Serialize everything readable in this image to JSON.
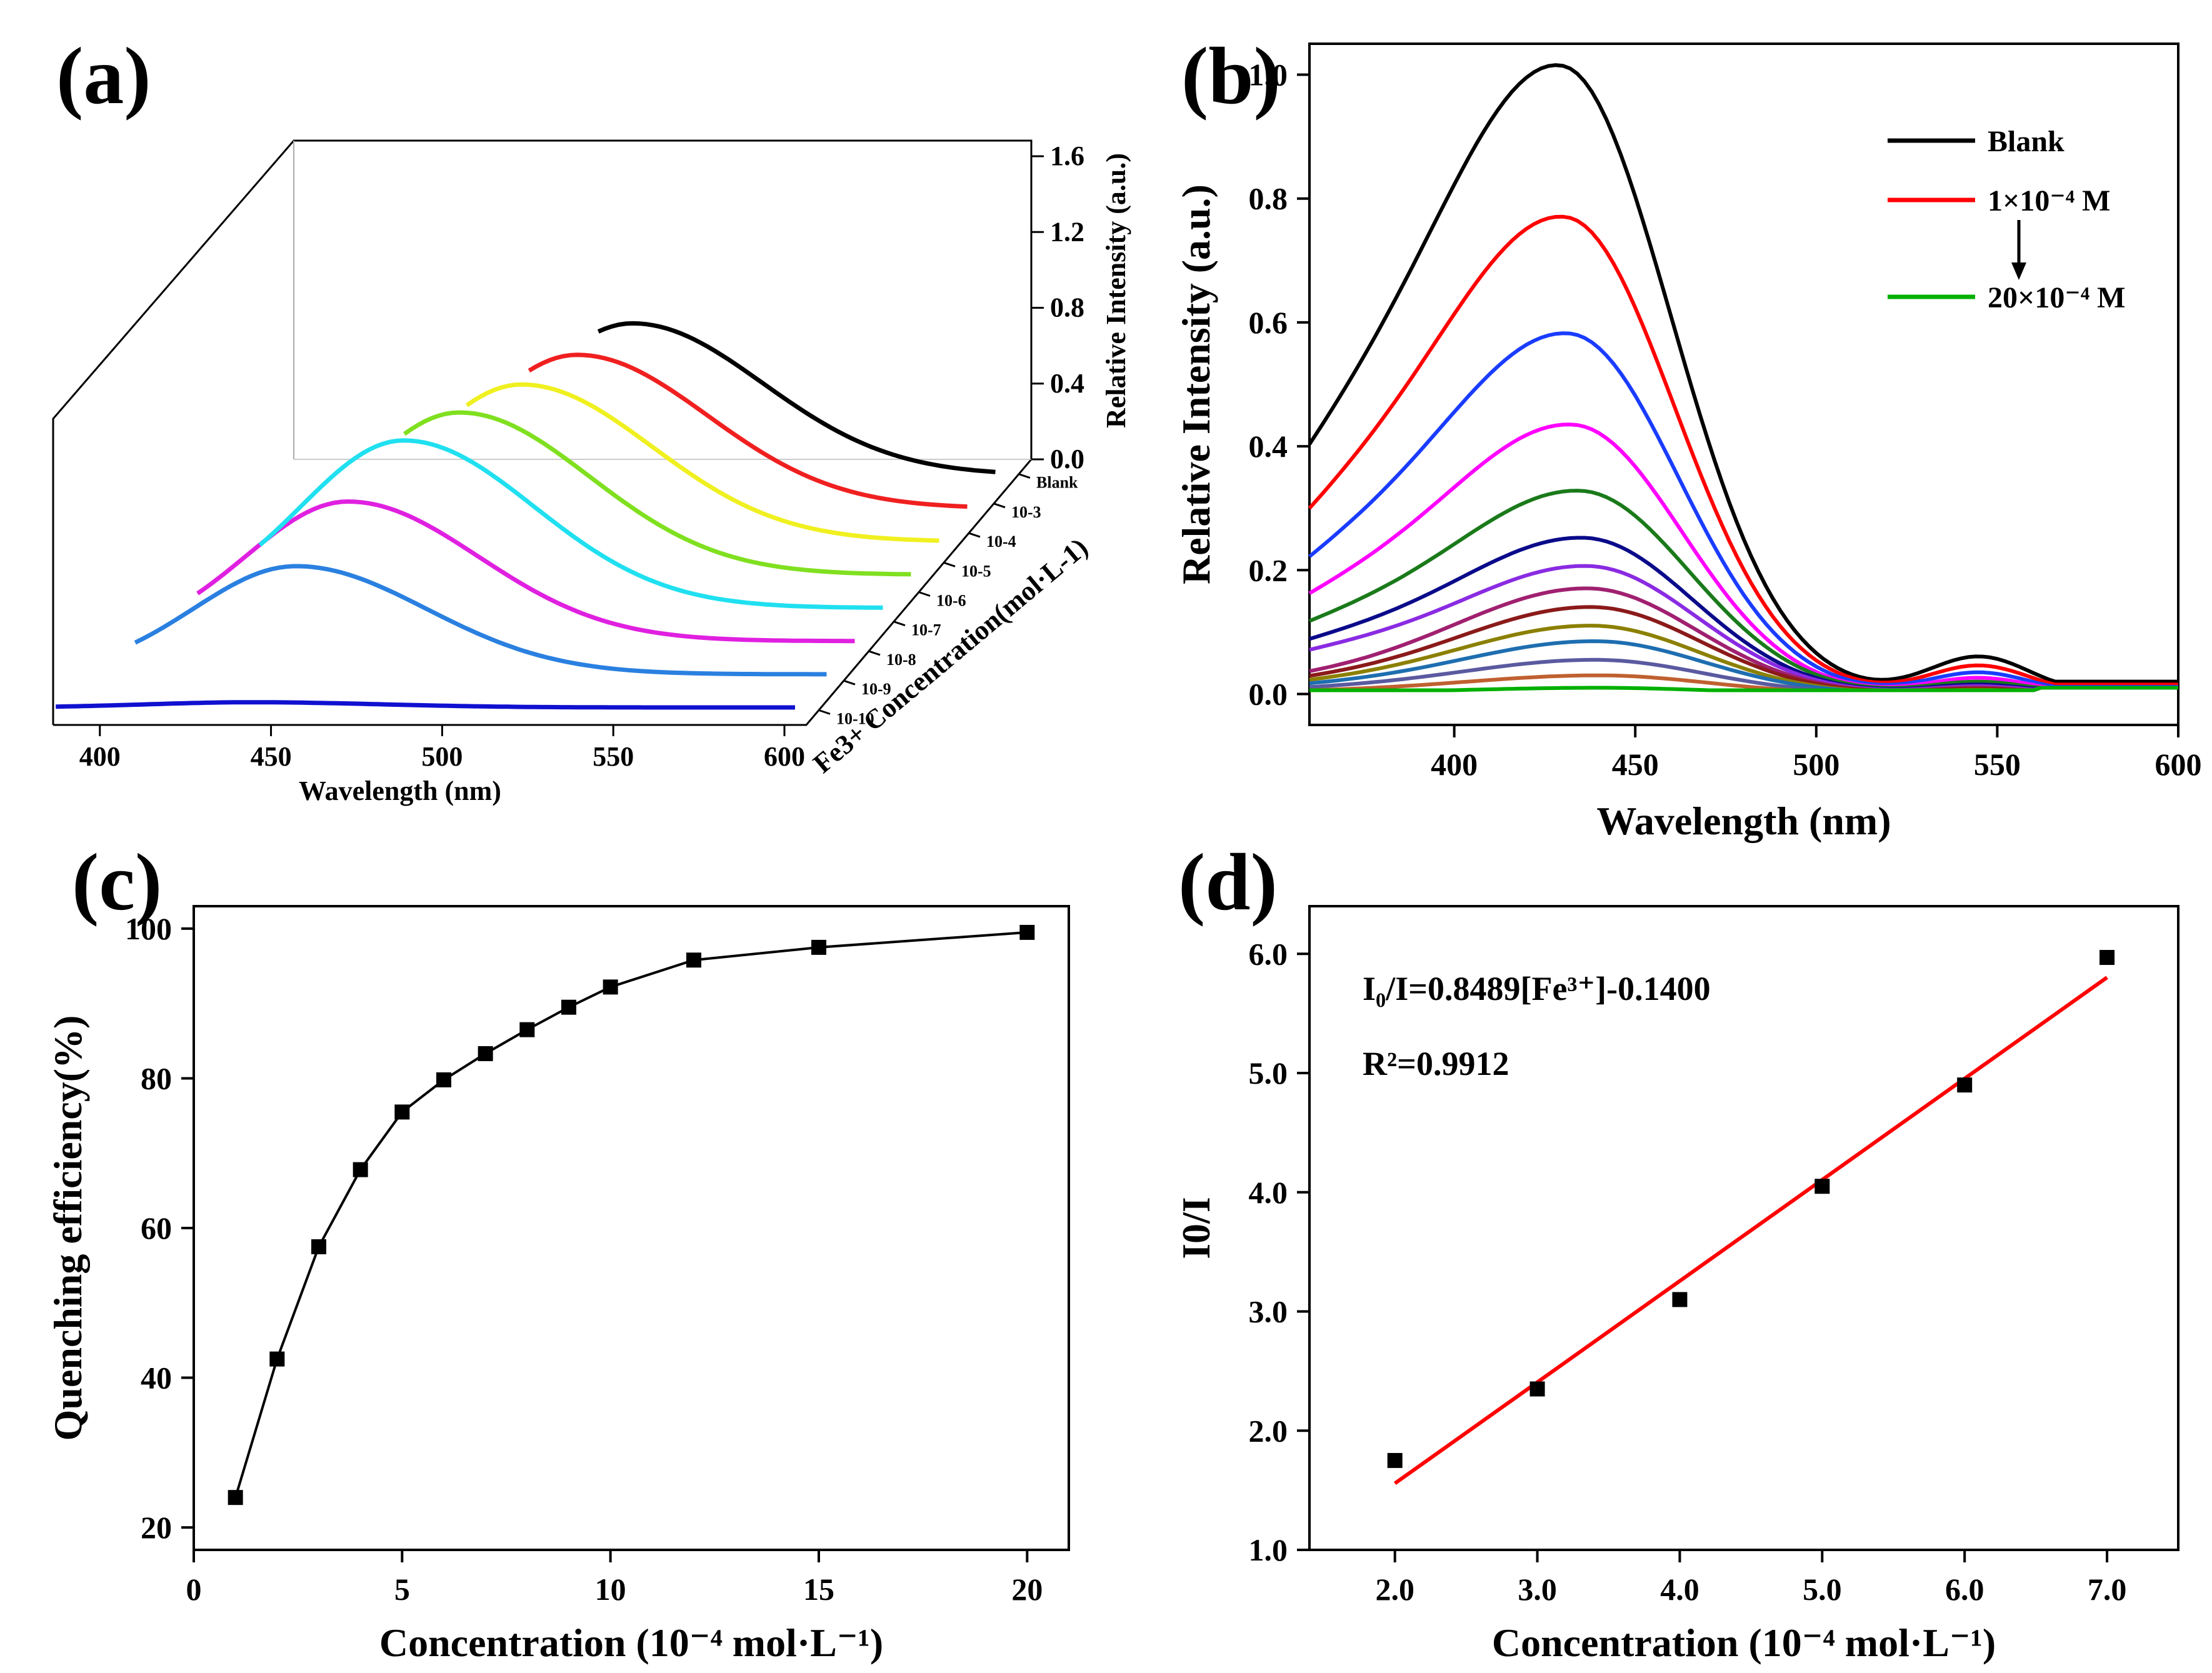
{
  "chart_data": [
    {
      "panel": "(a)",
      "type": "line",
      "view": "3d-waterfall",
      "xlabel": "Wavelength (nm)",
      "zlabel": "Relative Intensity (a.u.)",
      "depth_label": "Fe3+ Concentration(mol·L-1)",
      "x_ticks": [
        "400",
        "450",
        "500",
        "550",
        "600"
      ],
      "z_ticks": [
        "0.0",
        "0.4",
        "0.8",
        "1.2",
        "1.6"
      ],
      "depth_ticks": [
        "10-10",
        "10-9",
        "10-8",
        "10-7",
        "10-6",
        "10-5",
        "10-4",
        "10-3",
        "Blank"
      ],
      "xlim": [
        390,
        600
      ],
      "zlim": [
        0,
        1.6
      ],
      "series": [
        {
          "name": "10-10",
          "color": "#1010d0",
          "peak_x": 440,
          "peak": 0.03,
          "start_x": 383
        },
        {
          "name": "10-9",
          "color": "#2a80e0",
          "peak_x": 445,
          "peak": 0.62,
          "start_x": 398
        },
        {
          "name": "10-8",
          "color": "#e020e0",
          "peak_x": 452,
          "peak": 0.8,
          "start_x": 408
        },
        {
          "name": "10-7",
          "color": "#20e0f0",
          "peak_x": 460,
          "peak": 0.96,
          "start_x": 418
        },
        {
          "name": "10-6",
          "color": "#80e020",
          "peak_x": 468,
          "peak": 0.93,
          "start_x": 452
        },
        {
          "name": "10-5",
          "color": "#f0f020",
          "peak_x": 478,
          "peak": 0.9,
          "start_x": 462
        },
        {
          "name": "10-4",
          "color": "#f02020",
          "peak_x": 486,
          "peak": 0.88,
          "start_x": 472
        },
        {
          "name": "Blank",
          "color": "#000000",
          "peak_x": 494,
          "peak": 0.87,
          "start_x": 484
        }
      ]
    },
    {
      "panel": "(b)",
      "type": "line",
      "xlabel": "Wavelength (nm)",
      "ylabel": "Relative Intensity (a.u.)",
      "xlim": [
        360,
        600
      ],
      "ylim": [
        -0.05,
        1.05
      ],
      "x_ticks": [
        "400",
        "450",
        "500",
        "550",
        "600"
      ],
      "y_ticks": [
        "0.0",
        "0.2",
        "0.4",
        "0.6",
        "0.8",
        "1.0"
      ],
      "legend": [
        {
          "label": "Blank",
          "color": "#000000"
        },
        {
          "label": "1×10⁻⁴ M",
          "color": "#ff0000"
        },
        {
          "label": "20×10⁻⁴ M",
          "color": "#00b000"
        }
      ],
      "series": [
        {
          "color": "#000000",
          "peak": 1.0,
          "peak_x": 430
        },
        {
          "color": "#ff0000",
          "peak": 0.76,
          "peak_x": 431
        },
        {
          "color": "#1a3cff",
          "peak": 0.575,
          "peak_x": 432
        },
        {
          "color": "#ff00ff",
          "peak": 0.43,
          "peak_x": 433
        },
        {
          "color": "#1a7a1a",
          "peak": 0.325,
          "peak_x": 435
        },
        {
          "color": "#0a0a8a",
          "peak": 0.25,
          "peak_x": 436
        },
        {
          "color": "#8a2be2",
          "peak": 0.205,
          "peak_x": 437
        },
        {
          "color": "#a02070",
          "peak": 0.17,
          "peak_x": 437
        },
        {
          "color": "#8b1a1a",
          "peak": 0.14,
          "peak_x": 438
        },
        {
          "color": "#8b8000",
          "peak": 0.11,
          "peak_x": 438
        },
        {
          "color": "#1e6eb0",
          "peak": 0.085,
          "peak_x": 439
        },
        {
          "color": "#5a5aa0",
          "peak": 0.055,
          "peak_x": 439
        },
        {
          "color": "#c06030",
          "peak": 0.03,
          "peak_x": 440
        },
        {
          "color": "#00b000",
          "peak": 0.01,
          "peak_x": 440
        }
      ]
    },
    {
      "panel": "(c)",
      "type": "line",
      "xlabel": "Concentration (10⁻⁴ mol·L⁻¹)",
      "ylabel": "Quenching efficiency(%)",
      "xlim": [
        0,
        21
      ],
      "ylim": [
        17,
        103
      ],
      "x_ticks": [
        "0",
        "5",
        "10",
        "15",
        "20"
      ],
      "y_ticks": [
        "20",
        "40",
        "60",
        "80",
        "100"
      ],
      "x": [
        1,
        2,
        3,
        4,
        5,
        6,
        7,
        8,
        9,
        10,
        12,
        15,
        20
      ],
      "values": [
        24.0,
        42.5,
        57.5,
        67.8,
        75.5,
        79.8,
        83.3,
        86.5,
        89.5,
        92.2,
        95.8,
        97.5,
        99.5
      ]
    },
    {
      "panel": "(d)",
      "type": "scatter",
      "xlabel": "Concentration (10⁻⁴ mol·L⁻¹)",
      "ylabel": "I0/I",
      "xlim": [
        1.4,
        7.5
      ],
      "ylim": [
        1.0,
        6.4
      ],
      "x_ticks": [
        "2.0",
        "3.0",
        "4.0",
        "5.0",
        "6.0",
        "7.0"
      ],
      "y_ticks": [
        "1.0",
        "2.0",
        "3.0",
        "4.0",
        "5.0",
        "6.0"
      ],
      "x": [
        2,
        3,
        4,
        5,
        6,
        7
      ],
      "values": [
        1.75,
        2.35,
        3.1,
        4.05,
        4.9,
        5.97
      ],
      "fit": {
        "slope": 0.8489,
        "intercept": -0.14,
        "x_range": [
          2,
          7
        ],
        "color": "#ff0000"
      },
      "equation": "I₀/I=0.8489[Fe³⁺]-0.1400",
      "r_squared": "R²=0.9912"
    }
  ]
}
